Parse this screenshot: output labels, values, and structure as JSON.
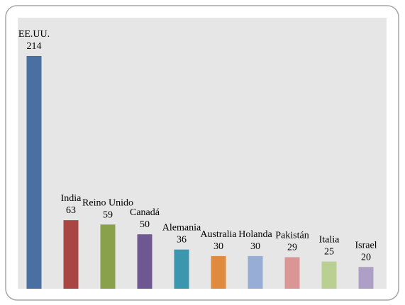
{
  "chart_data": {
    "type": "bar",
    "categories": [
      "EE.UU.",
      "India",
      "Reino Unido",
      "Canadá",
      "Alemania",
      "Australia",
      "Holanda",
      "Pakistán",
      "Italia",
      "Israel"
    ],
    "values": [
      214,
      63,
      59,
      50,
      36,
      30,
      30,
      29,
      25,
      20
    ],
    "colors": [
      "#4a70a2",
      "#a94543",
      "#8aa14b",
      "#6f5791",
      "#3c97ae",
      "#e08a3d",
      "#98add6",
      "#d99695",
      "#bad092",
      "#ae9fc7"
    ]
  }
}
